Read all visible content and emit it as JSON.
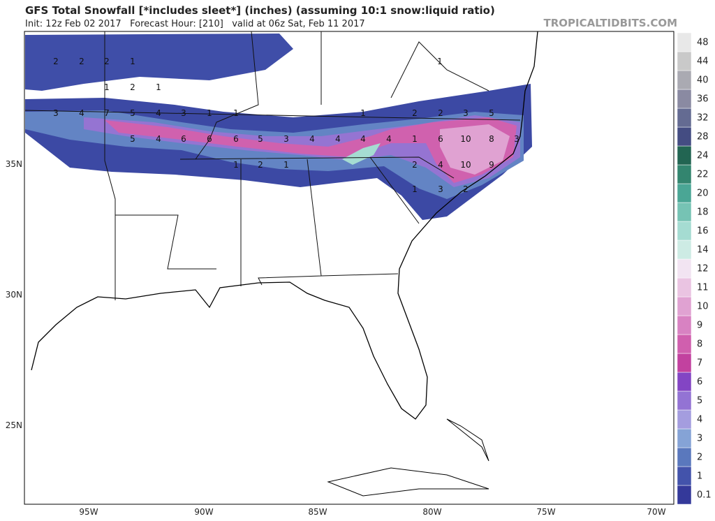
{
  "header": {
    "title": "GFS Total Snowfall [*includes sleet*] (inches) (assuming 10:1 snow:liquid ratio)",
    "subtitle": "Init: 12z Feb 02 2017   Forecast Hour: [210]   valid at 06z Sat, Feb 11 2017",
    "site": "TROPICALTIDBITS.COM"
  },
  "lat_labels": [
    "35N",
    "30N",
    "25N"
  ],
  "lon_labels": [
    "95W",
    "90W",
    "85W",
    "80W",
    "75W",
    "70W"
  ],
  "colorbar": {
    "labels": [
      0.1,
      1,
      2,
      3,
      4,
      5,
      6,
      7,
      8,
      9,
      10,
      11,
      12,
      14,
      16,
      18,
      20,
      22,
      24,
      28,
      32,
      36,
      40,
      44,
      48
    ],
    "colors": [
      "#34399a",
      "#4353ab",
      "#5a78bd",
      "#85a3d6",
      "#a49ddf",
      "#9373d4",
      "#8345c4",
      "#c2419f",
      "#d05fae",
      "#d882c2",
      "#e0a2d2",
      "#eac4e2",
      "#f2e4f2",
      "#cdebe4",
      "#a5dcd2",
      "#76c3b4",
      "#4aa695",
      "#33856f",
      "#226552",
      "#444c82",
      "#646b92",
      "#8a8aa2",
      "#aaaab2",
      "#c9c9c9",
      "#e8e8e8"
    ]
  },
  "map_labels": [
    "2",
    "2",
    "2",
    "1",
    "1",
    "1",
    "2",
    "1",
    "3",
    "4",
    "7",
    "5",
    "4",
    "3",
    "1",
    "1",
    "1",
    "2",
    "2",
    "3",
    "5",
    "5",
    "4",
    "6",
    "6",
    "6",
    "5",
    "3",
    "4",
    "4",
    "4",
    "4",
    "1",
    "6",
    "10",
    "8",
    "3",
    "1",
    "2",
    "1",
    "2",
    "4",
    "10",
    "9",
    "1",
    "3",
    "2"
  ]
}
